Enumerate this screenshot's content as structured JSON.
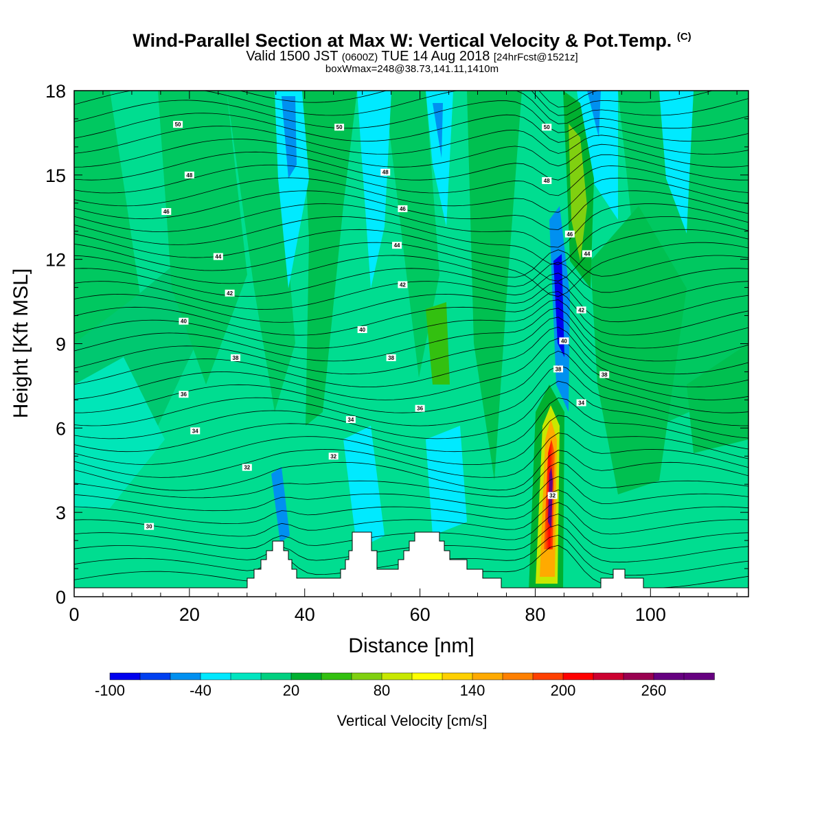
{
  "title": {
    "main": "Wind-Parallel Section at Max W: Vertical Velocity & Pot.Temp.",
    "copyright": "(C)",
    "valid_prefix": "Valid 1500 JST",
    "utc": "(0600Z)",
    "valid_suffix": "TUE 14 Aug 2018",
    "forecast": "[24hrFcst@1521z]",
    "boxinfo": "boxWmax=248@38.73,141.11,1410m"
  },
  "chart_data": {
    "type": "heatmap",
    "xlabel": "Distance [nm]",
    "ylabel": "Height [Kft MSL]",
    "xlim": [
      0,
      117
    ],
    "ylim": [
      0,
      18
    ],
    "x_ticks": [
      "0",
      "20",
      "40",
      "60",
      "80",
      "100"
    ],
    "y_ticks": [
      "0",
      "3",
      "6",
      "9",
      "12",
      "15",
      "18"
    ],
    "colorbar": {
      "label": "Vertical Velocity [cm/s]",
      "tick_labels": [
        "-100",
        "-40",
        "20",
        "80",
        "140",
        "200",
        "260"
      ],
      "tick_values": [
        -100,
        -40,
        20,
        80,
        140,
        200,
        260
      ],
      "range": [
        -100,
        300
      ],
      "colors": [
        "#0000ee",
        "#0040f0",
        "#0090f0",
        "#00e8ff",
        "#00e5c0",
        "#00d080",
        "#00b030",
        "#33c010",
        "#80d010",
        "#c8e800",
        "#ffff00",
        "#ffd000",
        "#ffaa00",
        "#ff8000",
        "#ff4000",
        "#ff0000",
        "#cc0030",
        "#990050",
        "#660080"
      ]
    },
    "isentrope_labels": [
      {
        "x": 18,
        "y": 16.8,
        "text": "50"
      },
      {
        "x": 46,
        "y": 16.7,
        "text": "50"
      },
      {
        "x": 82,
        "y": 16.7,
        "text": "50"
      },
      {
        "x": 20,
        "y": 15.0,
        "text": "48"
      },
      {
        "x": 54,
        "y": 15.1,
        "text": "48"
      },
      {
        "x": 82,
        "y": 14.8,
        "text": "48"
      },
      {
        "x": 16,
        "y": 13.7,
        "text": "46"
      },
      {
        "x": 57,
        "y": 13.8,
        "text": "46"
      },
      {
        "x": 86,
        "y": 12.9,
        "text": "46"
      },
      {
        "x": 25,
        "y": 12.1,
        "text": "44"
      },
      {
        "x": 56,
        "y": 12.5,
        "text": "44"
      },
      {
        "x": 89,
        "y": 12.2,
        "text": "44"
      },
      {
        "x": 27,
        "y": 10.8,
        "text": "42"
      },
      {
        "x": 57,
        "y": 11.1,
        "text": "42"
      },
      {
        "x": 88,
        "y": 10.2,
        "text": "42"
      },
      {
        "x": 19,
        "y": 9.8,
        "text": "40"
      },
      {
        "x": 50,
        "y": 9.5,
        "text": "40"
      },
      {
        "x": 85,
        "y": 9.1,
        "text": "40"
      },
      {
        "x": 28,
        "y": 8.5,
        "text": "38"
      },
      {
        "x": 55,
        "y": 8.5,
        "text": "38"
      },
      {
        "x": 84,
        "y": 8.1,
        "text": "38"
      },
      {
        "x": 92,
        "y": 7.9,
        "text": "38"
      },
      {
        "x": 19,
        "y": 7.2,
        "text": "36"
      },
      {
        "x": 60,
        "y": 6.7,
        "text": "36"
      },
      {
        "x": 88,
        "y": 6.9,
        "text": "34"
      },
      {
        "x": 21,
        "y": 5.9,
        "text": "34"
      },
      {
        "x": 48,
        "y": 6.3,
        "text": "34"
      },
      {
        "x": 45,
        "y": 5.0,
        "text": "32"
      },
      {
        "x": 30,
        "y": 4.6,
        "text": "32"
      },
      {
        "x": 83,
        "y": 3.6,
        "text": "32"
      },
      {
        "x": 13,
        "y": 2.5,
        "text": "30"
      }
    ]
  }
}
